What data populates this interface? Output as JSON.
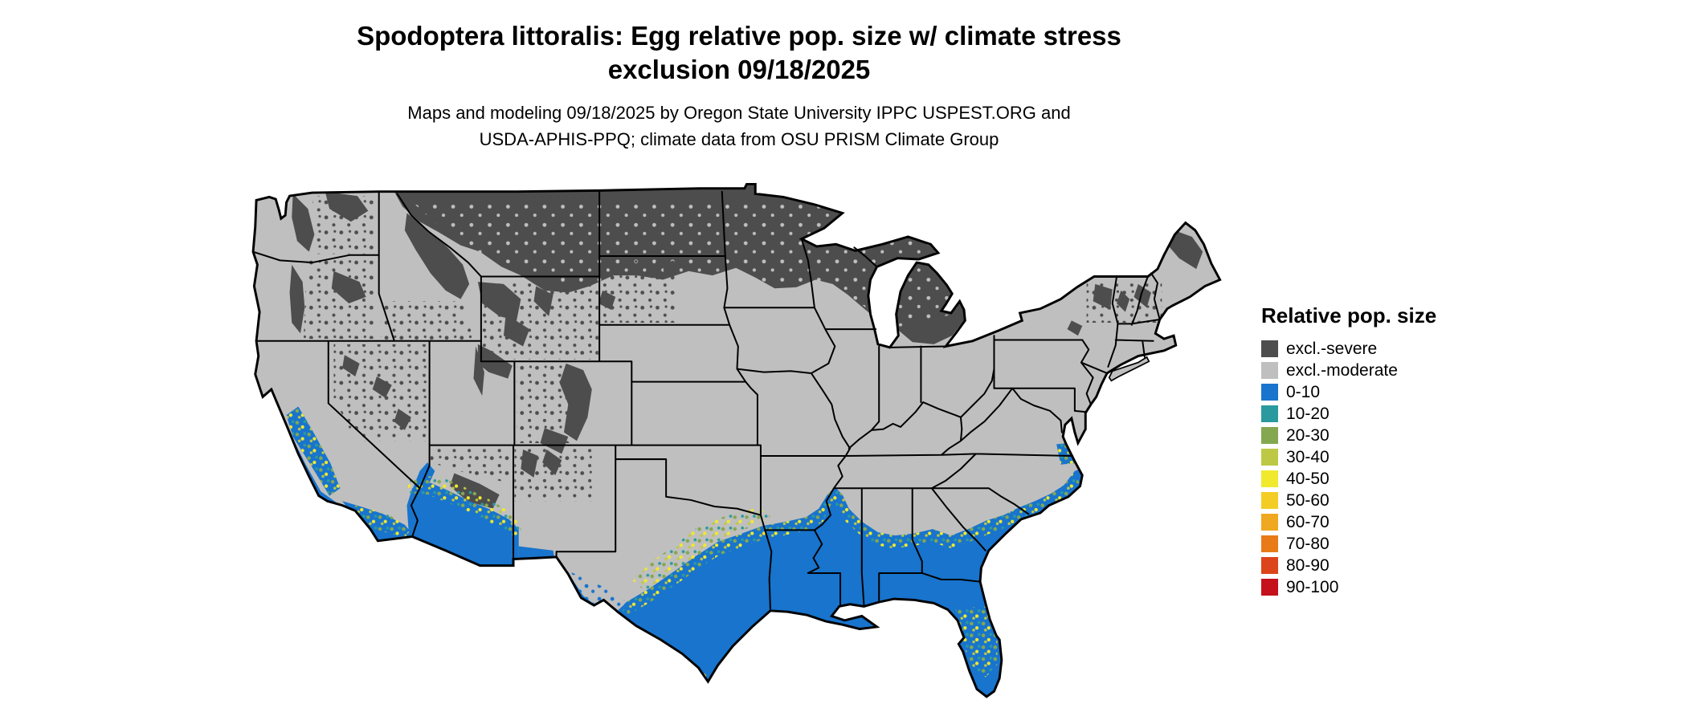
{
  "title": {
    "line1": "Spodoptera littoralis: Egg relative pop. size w/ climate stress",
    "line2": "exclusion 09/18/2025"
  },
  "subtitle": {
    "line1": "Maps and modeling 09/18/2025 by Oregon State University IPPC USPEST.ORG and",
    "line2": "USDA-APHIS-PPQ; climate data from OSU PRISM Climate Group"
  },
  "legend": {
    "title": "Relative pop. size",
    "items": [
      {
        "label": "excl.-severe",
        "color": "#4d4d4d"
      },
      {
        "label": "excl.-moderate",
        "color": "#bfbfbf"
      },
      {
        "label": "0-10",
        "color": "#1874cd"
      },
      {
        "label": "10-20",
        "color": "#2b9a9e"
      },
      {
        "label": "20-30",
        "color": "#84a850"
      },
      {
        "label": "30-40",
        "color": "#bdc944"
      },
      {
        "label": "40-50",
        "color": "#f0e92e"
      },
      {
        "label": "50-60",
        "color": "#f3cd24"
      },
      {
        "label": "60-70",
        "color": "#efa820"
      },
      {
        "label": "70-80",
        "color": "#e87b17"
      },
      {
        "label": "80-90",
        "color": "#dc4419"
      },
      {
        "label": "90-100",
        "color": "#c4111c"
      }
    ]
  },
  "map": {
    "region": "Continental United States",
    "colors": {
      "background": "#ffffff",
      "border": "#000000"
    }
  }
}
